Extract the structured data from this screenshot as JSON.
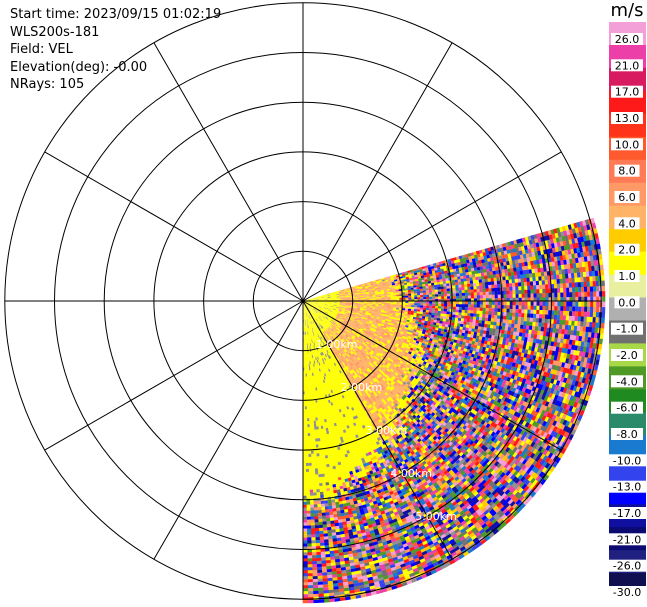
{
  "header": {
    "start_time": "Start time: 2023/09/15 01:02:19",
    "instrument": "WLS200s-181",
    "field": "Field: VEL",
    "elevation": "Elevation(deg): -0.00",
    "nrays": "NRays: 105"
  },
  "chart_data": {
    "type": "heatmap",
    "projection": "polar-ppi",
    "range_rings_km": [
      1,
      2,
      3,
      4,
      5,
      6
    ],
    "range_ring_labels": [
      "1.00km",
      "2.00km",
      "3.00km",
      "4.00km",
      "5.00km"
    ],
    "ring_label_azimuth_deg": 150,
    "spokes_every_deg": 30,
    "scan_sector_azimuth_deg": [
      74,
      180
    ],
    "nrays": 105,
    "max_range_km": 6.05,
    "colorbar": {
      "unit": "m/s",
      "tick_labels": [
        "26.0",
        "21.0",
        "17.0",
        "13.0",
        "10.0",
        "8.0",
        "6.0",
        "4.0",
        "2.0",
        "1.0",
        "0.0",
        "-1.0",
        "-2.0",
        "-4.0",
        "-6.0",
        "-8.0",
        "-10.0",
        "-13.0",
        "-17.0",
        "-21.0",
        "-26.0",
        "-30.0"
      ],
      "colors": [
        "#f4a0d8",
        "#ec3fa7",
        "#d81b60",
        "#ff1a1a",
        "#ff3319",
        "#ff5a2e",
        "#ff7a55",
        "#ff9966",
        "#ffb366",
        "#ffcc00",
        "#ffff00",
        "#e8f0a0",
        "#b0b0b0",
        "#707070",
        "#a8d848",
        "#4f9a26",
        "#1f8a1f",
        "#2a8a6a",
        "#1a7ad0",
        "#3344ee",
        "#0000ff",
        "#1010a0",
        "#0a0a70",
        "#202080",
        "#101050"
      ]
    }
  }
}
